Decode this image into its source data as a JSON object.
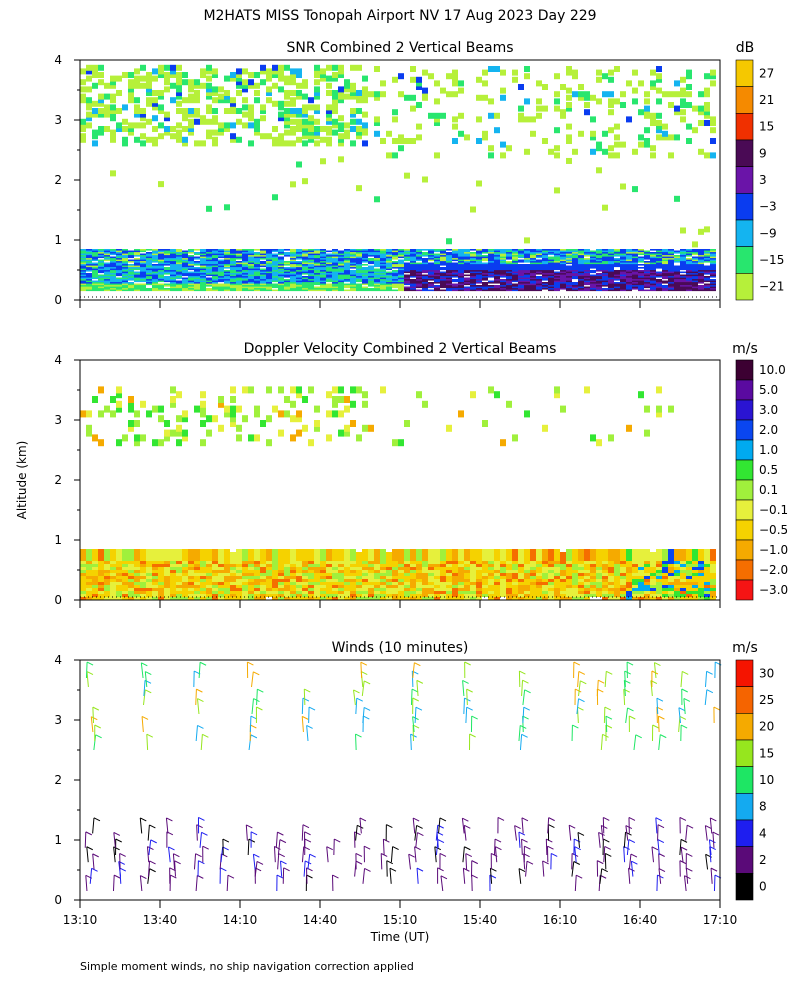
{
  "header": {
    "main_title": "M2HATS MISS Tonopah Airport NV  17 Aug 2023 Day 229",
    "y_label": "Altitude (km)",
    "x_label": "Time (UT)",
    "footnote": "Simple moment winds, no ship navigation correction applied"
  },
  "chart_data": [
    {
      "type": "heatmap",
      "title": "SNR Combined 2 Vertical Beams",
      "colorbar_unit": "dB",
      "colorbar_ticks": [
        "27",
        "21",
        "15",
        "9",
        "3",
        "−3",
        "−9",
        "−15",
        "−21"
      ],
      "colorbar_colors": [
        "#f5c800",
        "#f58a00",
        "#f03000",
        "#4a0a55",
        "#6a14a8",
        "#0a3cf0",
        "#14b4f0",
        "#28e66e",
        "#b6f03a"
      ],
      "ylabel": "Altitude (km)",
      "y_ticks": [
        "0",
        "1",
        "2",
        "3",
        "4"
      ],
      "ylim": [
        0,
        4
      ],
      "x_ticks": [
        "13:10",
        "13:40",
        "14:10",
        "14:40",
        "15:10",
        "15:40",
        "16:10",
        "16:40",
        "17:10"
      ],
      "layers": [
        {
          "name": "boundary layer",
          "alt_km": [
            0.15,
            0.85
          ],
          "snr_db": "-21 to 9"
        },
        {
          "name": "upper cloud layer",
          "alt_km": [
            2.7,
            3.9
          ],
          "snr_db": "-21 to -3"
        }
      ]
    },
    {
      "type": "heatmap",
      "title": "Doppler Velocity Combined 2 Vertical Beams",
      "colorbar_unit": "m/s",
      "colorbar_ticks": [
        "10.0",
        "5.0",
        "3.0",
        "2.0",
        "1.0",
        "0.5",
        "0.1",
        "−0.1",
        "−0.5",
        "−1.0",
        "−2.0",
        "−3.0"
      ],
      "colorbar_colors": [
        "#3c0032",
        "#5a0aa0",
        "#2a14d2",
        "#0a46f0",
        "#00aaf0",
        "#32e632",
        "#a0f03c",
        "#e6f03c",
        "#f5d200",
        "#f5aa00",
        "#f56e00",
        "#f51414"
      ],
      "y_ticks": [
        "0",
        "1",
        "2",
        "3",
        "4"
      ],
      "ylim": [
        0,
        4
      ],
      "x_ticks": [
        "13:10",
        "13:40",
        "14:10",
        "14:40",
        "15:10",
        "15:40",
        "16:10",
        "16:40",
        "17:10"
      ]
    },
    {
      "type": "scatter",
      "title": "Winds (10 minutes)",
      "colorbar_unit": "m/s",
      "colorbar_ticks": [
        "30",
        "25",
        "20",
        "15",
        "10",
        "8",
        "4",
        "2",
        "0"
      ],
      "colorbar_colors": [
        "#f51400",
        "#f56400",
        "#f5aa00",
        "#96e61e",
        "#1ee664",
        "#14aaf0",
        "#1e1ef0",
        "#5a0a78",
        "#000000"
      ],
      "y_ticks": [
        "0",
        "1",
        "2",
        "3",
        "4"
      ],
      "ylim": [
        0,
        4
      ],
      "x_ticks": [
        "13:10",
        "13:40",
        "14:10",
        "14:40",
        "15:10",
        "15:40",
        "16:10",
        "16:40",
        "17:10"
      ],
      "x_range_ut": [
        "13:10",
        "17:10"
      ],
      "barb_interval_min": 10
    }
  ]
}
